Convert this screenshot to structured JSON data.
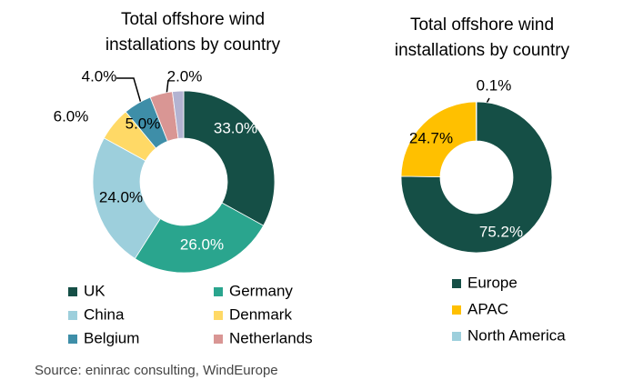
{
  "chart_data": [
    {
      "type": "donut",
      "title": [
        "Total offshore wind",
        "installations by country"
      ],
      "categories": [
        "UK",
        "Germany",
        "China",
        "Denmark",
        "Belgium",
        "Netherlands",
        null
      ],
      "values": [
        33,
        26,
        24,
        6,
        5,
        4,
        2
      ],
      "value_labels": [
        "33.0%",
        "26.0%",
        "24.0%",
        "6.0%",
        "5.0%",
        "4.0%",
        "2.0%"
      ],
      "colors": [
        "#154f46",
        "#2aa58e",
        "#9dcfdc",
        "#ffd966",
        "#3e8ea8",
        "#d99694",
        "#b3b3d1"
      ]
    },
    {
      "type": "donut",
      "title": [
        "Total offshore wind",
        "installations by country"
      ],
      "categories": [
        "Europe",
        "APAC",
        "North America"
      ],
      "values": [
        75.2,
        24.7,
        0.1
      ],
      "value_labels": [
        "75.2%",
        "24.7%",
        "0.1%"
      ],
      "colors": [
        "#154f46",
        "#ffc000",
        "#9dcfdc"
      ]
    }
  ],
  "source": "Source: eninrac consulting, WindEurope"
}
